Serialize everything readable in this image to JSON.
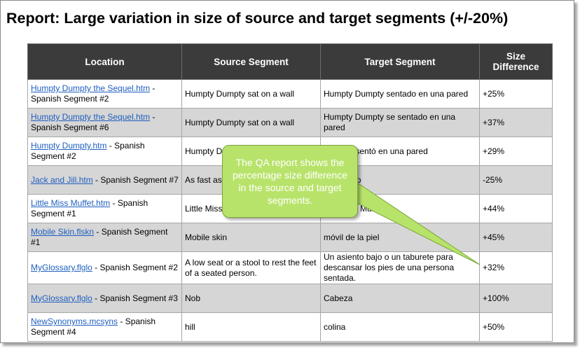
{
  "report": {
    "title": "Report: Large variation in size of source and target segments (+/-20%)"
  },
  "table": {
    "headers": {
      "location": "Location",
      "source": "Source Segment",
      "target": "Target Segment",
      "size_line1": "Size",
      "size_line2": "Difference"
    },
    "rows": [
      {
        "file": "Humpty Dumpty the Sequel.htm",
        "segment": " - Spanish Segment #2",
        "source": "Humpty Dumpty sat on a wall",
        "target": "Humpty Dumpty sentado en una pared",
        "diff": "+25%"
      },
      {
        "file": "Humpty Dumpty the Sequel.htm",
        "segment": " - Spanish Segment #6",
        "source": "Humpty Dumpty sat on a wall",
        "target": "Humpty Dumpty se sentado en una pared",
        "diff": "+37%"
      },
      {
        "file": "Humpty Dumpty.htm",
        "segment": " - Spanish Segment #2",
        "source": "Humpty D",
        "target": "mpty se sentó en una pared",
        "diff": "+29%"
      },
      {
        "file": "Jack and Jill.htm",
        "segment": " - Spanish Segment #7",
        "source": "As fast as",
        "target": "omo pudo",
        "diff": "-25%"
      },
      {
        "file": "Little Miss Muffet.htm",
        "segment": " - Spanish Segment #1",
        "source": "Little Miss",
        "target": "ña Señor Muffet",
        "diff": "+44%"
      },
      {
        "file": "Mobile Skin.flskn",
        "segment": " - Spanish Segment #1",
        "source": "Mobile skin",
        "target": "móvil de la piel",
        "diff": "+45%"
      },
      {
        "file": "MyGlossary.flglo",
        "segment": " - Spanish Segment #2",
        "source": "A low seat or a stool to rest the feet of a seated person.",
        "target": "Un asiento bajo o un taburete para descansar los pies de una persona sentada.",
        "diff": "+32%"
      },
      {
        "file": "MyGlossary.flglo",
        "segment": " - Spanish Segment #3",
        "source": "Nob",
        "target": "Cabeza",
        "diff": "+100%"
      },
      {
        "file": "NewSynonyms.mcsyns",
        "segment": " - Spanish Segment #4",
        "source": "hill",
        "target": "colina",
        "diff": "+50%"
      }
    ]
  },
  "callout": {
    "text": "The QA report shows the percentage size difference in the source and target segments.",
    "color": "#b8e36b"
  }
}
